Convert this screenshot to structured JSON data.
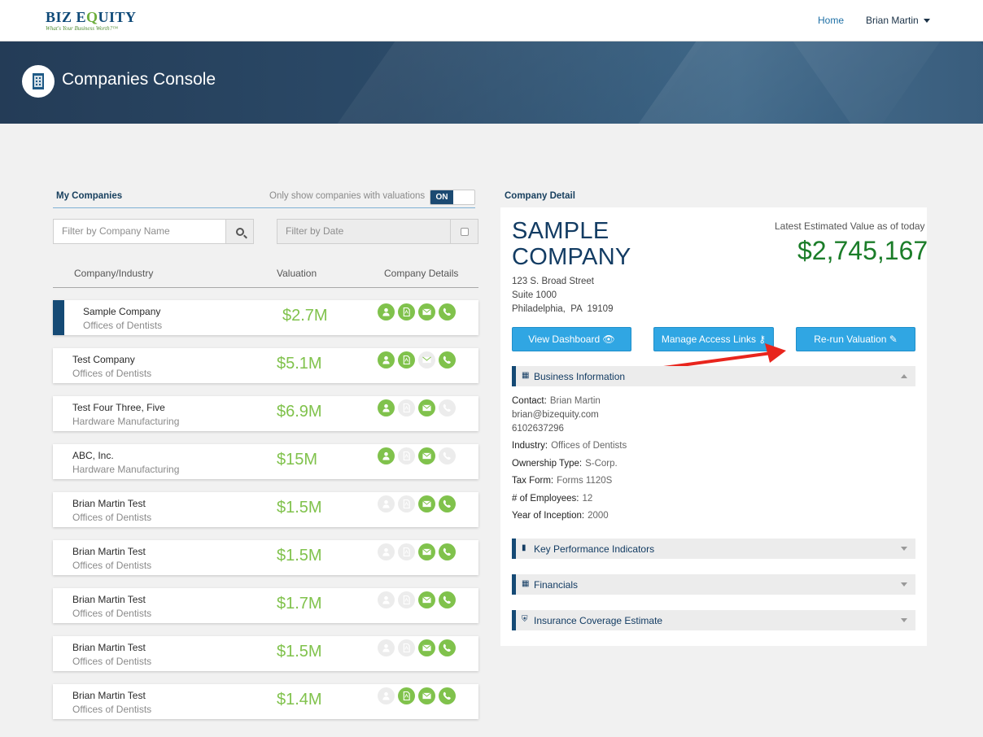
{
  "logo": {
    "main_a": "BIZ E",
    "main_q": "Q",
    "main_b": "UITY",
    "tagline": "What's Your Business Worth?™"
  },
  "nav": {
    "home": "Home",
    "user": "Brian Martin"
  },
  "banner": {
    "title": "Companies Console"
  },
  "my_companies": {
    "title": "My Companies",
    "toggle_label": "Only show companies with valuations",
    "toggle_state": "ON",
    "filter_name_placeholder": "Filter by Company Name",
    "filter_date_placeholder": "Filter by Date",
    "columns": {
      "company": "Company/Industry",
      "valuation": "Valuation",
      "details": "Company Details"
    },
    "rows": [
      {
        "name": "Sample Company",
        "industry": "Offices of Dentists",
        "valuation": "$2.7M",
        "icons": [
          1,
          1,
          1,
          1
        ]
      },
      {
        "name": "Test Company",
        "industry": "Offices of Dentists",
        "valuation": "$5.1M",
        "icons": [
          1,
          1,
          0,
          1
        ]
      },
      {
        "name": "Test Four Three, Five",
        "industry": "Hardware Manufacturing",
        "valuation": "$6.9M",
        "icons": [
          1,
          0,
          1,
          0
        ]
      },
      {
        "name": "ABC, Inc.",
        "industry": "Hardware Manufacturing",
        "valuation": "$15M",
        "icons": [
          1,
          0,
          1,
          0
        ]
      },
      {
        "name": "Brian Martin Test",
        "industry": "Offices of Dentists",
        "valuation": "$1.5M",
        "icons": [
          0,
          0,
          1,
          1
        ]
      },
      {
        "name": "Brian Martin Test",
        "industry": "Offices of Dentists",
        "valuation": "$1.5M",
        "icons": [
          0,
          0,
          1,
          1
        ]
      },
      {
        "name": "Brian Martin Test",
        "industry": "Offices of Dentists",
        "valuation": "$1.7M",
        "icons": [
          0,
          0,
          1,
          1
        ]
      },
      {
        "name": "Brian Martin Test",
        "industry": "Offices of Dentists",
        "valuation": "$1.5M",
        "icons": [
          0,
          0,
          1,
          1
        ]
      },
      {
        "name": "Brian Martin Test",
        "industry": "Offices of Dentists",
        "valuation": "$1.4M",
        "icons": [
          0,
          1,
          1,
          1
        ]
      }
    ]
  },
  "detail": {
    "title": "Company Detail",
    "company_name": "SAMPLE COMPANY",
    "address": [
      "123 S. Broad Street",
      "Suite 1000",
      "Philadelphia,  PA  19109"
    ],
    "estimate_label": "Latest Estimated Value as of today",
    "estimate_value": "$2,745,167",
    "buttons": {
      "dashboard": "View Dashboard",
      "access": "Manage Access Links",
      "rerun": "Re-run Valuation"
    },
    "sections": {
      "business": "Business Information",
      "kpi": "Key Performance Indicators",
      "financials": "Financials",
      "insurance": "Insurance Coverage Estimate"
    },
    "business": {
      "contact_label": "Contact:",
      "contact_name": "Brian Martin",
      "email": "brian@bizequity.com",
      "phone": "6102637296",
      "industry_label": "Industry:",
      "industry": "Offices of Dentists",
      "ownership_label": "Ownership Type:",
      "ownership": "S-Corp.",
      "taxform_label": "Tax Form:",
      "taxform": "Forms 1120S",
      "employees_label": "# of Employees:",
      "employees": "12",
      "inception_label": "Year of Inception:",
      "inception": "2000"
    }
  }
}
